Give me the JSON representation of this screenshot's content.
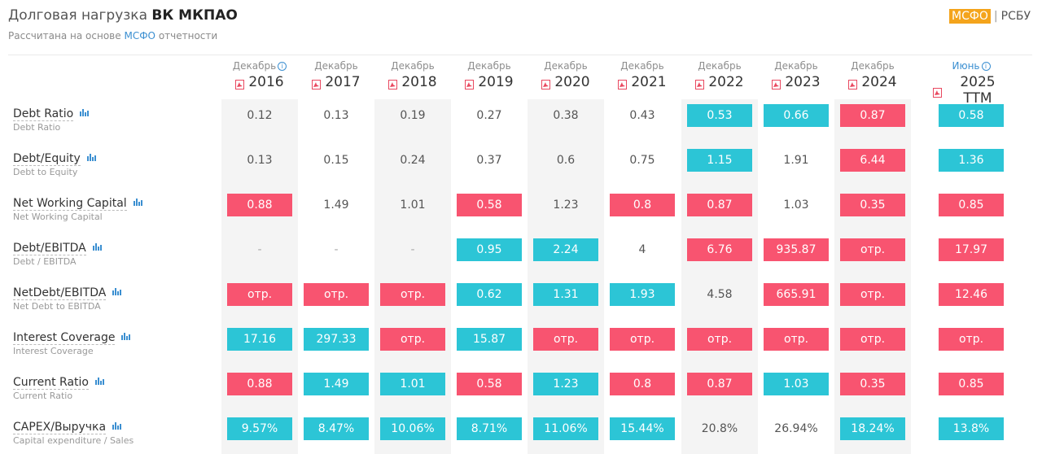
{
  "header": {
    "title_prefix": "Долговая нагрузка",
    "company": "ВК МКПАО",
    "subtitle_prefix": "Рассчитана на основе",
    "subtitle_link": "МСФО",
    "subtitle_suffix": "отчетности",
    "standard_active": "МСФО",
    "standard_separator": "|",
    "standard_other": "РСБУ"
  },
  "colors": {
    "red": "#f85470",
    "blue": "#2cc5d6",
    "orange": "#f4a41c",
    "link": "#3b8fd1"
  },
  "columns": [
    {
      "period": "Декабрь",
      "year": "2016",
      "info": true
    },
    {
      "period": "Декабрь",
      "year": "2017",
      "info": false
    },
    {
      "period": "Декабрь",
      "year": "2018",
      "info": false
    },
    {
      "period": "Декабрь",
      "year": "2019",
      "info": false
    },
    {
      "period": "Декабрь",
      "year": "2020",
      "info": false
    },
    {
      "period": "Декабрь",
      "year": "2021",
      "info": false
    },
    {
      "period": "Декабрь",
      "year": "2022",
      "info": false
    },
    {
      "period": "Декабрь",
      "year": "2023",
      "info": false
    },
    {
      "period": "Декабрь",
      "year": "2024",
      "info": false
    },
    {
      "period": "Июнь",
      "year": "2025 TTM",
      "info": true
    }
  ],
  "rows": [
    {
      "label": "Debt Ratio",
      "sub": "Debt Ratio",
      "values": [
        "0.12",
        "0.13",
        "0.19",
        "0.27",
        "0.38",
        "0.43",
        "0.53",
        "0.66",
        "0.87",
        "0.58"
      ],
      "status": [
        "n",
        "n",
        "n",
        "n",
        "n",
        "n",
        "b",
        "b",
        "r",
        "b"
      ]
    },
    {
      "label": "Debt/Equity",
      "sub": "Debt to Equity",
      "values": [
        "0.13",
        "0.15",
        "0.24",
        "0.37",
        "0.6",
        "0.75",
        "1.15",
        "1.91",
        "6.44",
        "1.36"
      ],
      "status": [
        "n",
        "n",
        "n",
        "n",
        "n",
        "n",
        "b",
        "n",
        "r",
        "b"
      ]
    },
    {
      "label": "Net Working Capital",
      "sub": "Net Working Capital",
      "values": [
        "0.88",
        "1.49",
        "1.01",
        "0.58",
        "1.23",
        "0.8",
        "0.87",
        "1.03",
        "0.35",
        "0.85"
      ],
      "status": [
        "r",
        "n",
        "n",
        "r",
        "n",
        "r",
        "r",
        "n",
        "r",
        "r"
      ]
    },
    {
      "label": "Debt/EBITDA",
      "sub": "Debt / EBITDA",
      "values": [
        "-",
        "-",
        "-",
        "0.95",
        "2.24",
        "4",
        "6.76",
        "935.87",
        "отр.",
        "17.97"
      ],
      "status": [
        "x",
        "x",
        "x",
        "b",
        "b",
        "n",
        "r",
        "r",
        "r",
        "r"
      ]
    },
    {
      "label": "NetDebt/EBITDA",
      "sub": "Net Debt to EBITDA",
      "values": [
        "отр.",
        "отр.",
        "отр.",
        "0.62",
        "1.31",
        "1.93",
        "4.58",
        "665.91",
        "отр.",
        "12.46"
      ],
      "status": [
        "r",
        "r",
        "r",
        "b",
        "b",
        "b",
        "n",
        "r",
        "r",
        "r"
      ]
    },
    {
      "label": "Interest Coverage",
      "sub": "Interest Coverage",
      "values": [
        "17.16",
        "297.33",
        "отр.",
        "15.87",
        "отр.",
        "отр.",
        "отр.",
        "отр.",
        "отр.",
        "отр."
      ],
      "status": [
        "b",
        "b",
        "r",
        "b",
        "r",
        "r",
        "r",
        "r",
        "r",
        "r"
      ]
    },
    {
      "label": "Current Ratio",
      "sub": "Current Ratio",
      "values": [
        "0.88",
        "1.49",
        "1.01",
        "0.58",
        "1.23",
        "0.8",
        "0.87",
        "1.03",
        "0.35",
        "0.85"
      ],
      "status": [
        "r",
        "b",
        "b",
        "r",
        "b",
        "r",
        "r",
        "b",
        "r",
        "r"
      ]
    },
    {
      "label": "CAPEX/Выручка",
      "sub": "Capital expenditure / Sales",
      "values": [
        "9.57%",
        "8.47%",
        "10.06%",
        "8.71%",
        "11.06%",
        "15.44%",
        "20.8%",
        "26.94%",
        "18.24%",
        "13.8%"
      ],
      "status": [
        "b",
        "b",
        "b",
        "b",
        "b",
        "b",
        "n",
        "n",
        "b",
        "b"
      ]
    }
  ]
}
